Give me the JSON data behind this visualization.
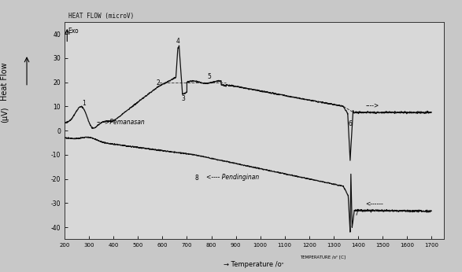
{
  "title": "HEAT FLOW (microV)",
  "ylabel_top": "Heat Flow",
  "ylabel_bot": "(μV)",
  "xlim": [
    200,
    1700
  ],
  "ylim": [
    -45,
    45
  ],
  "yticks": [
    -40,
    -30,
    -20,
    -10,
    0,
    10,
    20,
    30,
    40
  ],
  "xticks": [
    200,
    300,
    400,
    500,
    600,
    700,
    800,
    900,
    1000,
    1100,
    1200,
    1300,
    1400,
    1500,
    1600,
    1700
  ],
  "xtick_labels": [
    "200",
    "300",
    "400",
    "500",
    "600",
    "700",
    "800",
    "900",
    "1000",
    "1100",
    "1200",
    "1300",
    "1400",
    "1500",
    "1600",
    "1700"
  ],
  "bg_outer": "#c8c8c8",
  "bg_inner": "#d8d8d8",
  "line_color": "#111111",
  "exo_label": "Exo",
  "pemanasan_label": "---->Pemanasan",
  "pendinginan_label": "<---- Pendinginan",
  "temp_label": "Temperature (C)"
}
